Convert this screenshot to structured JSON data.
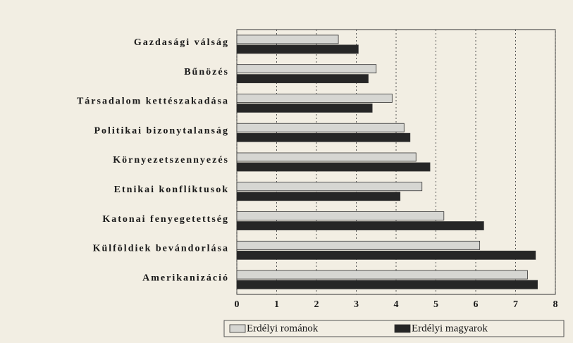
{
  "chart_data": {
    "type": "hbar",
    "categories": [
      "Gazdasági válság",
      "Bűnözés",
      "Társadalom kettészakadása",
      "Politikai bizonytalanság",
      "Környezetszennyezés",
      "Etnikai konfliktusok",
      "Katonai fenyegetettség",
      "Külföldiek bevándorlása",
      "Amerikanizáció"
    ],
    "series": [
      {
        "name": "Erdélyi románok",
        "color": "#d6d6d2",
        "values": [
          2.55,
          3.5,
          3.9,
          4.2,
          4.5,
          4.65,
          5.2,
          6.1,
          7.3
        ]
      },
      {
        "name": "Erdélyi magyarok",
        "color": "#262626",
        "values": [
          3.05,
          3.3,
          3.4,
          4.35,
          4.85,
          4.1,
          6.2,
          7.5,
          7.55
        ]
      }
    ],
    "xlim": [
      0,
      8
    ],
    "xticks": [
      0,
      1,
      2,
      3,
      4,
      5,
      6,
      7,
      8
    ],
    "grid": true
  }
}
